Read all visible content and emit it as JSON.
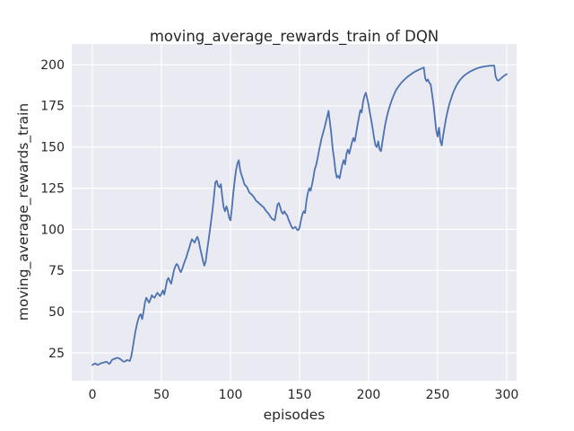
{
  "figure": {
    "background": "#ffffff"
  },
  "chart_data": {
    "type": "line",
    "title": "moving_average_rewards_train of DQN",
    "xlabel": "episodes",
    "ylabel": "moving_average_rewards_train",
    "x_ticks": [
      0,
      50,
      100,
      150,
      200,
      250,
      300
    ],
    "y_ticks": [
      25,
      50,
      75,
      100,
      125,
      150,
      175,
      200
    ],
    "xlim": [
      -15.0,
      307.2
    ],
    "ylim": [
      8.1,
      212.6
    ],
    "grid": true,
    "legend_visible": false,
    "colors": {
      "line": "#4C72B0",
      "plot_background": "#EAEAF2",
      "grid": "#FFFFFF",
      "text": "#262626",
      "figure_background": "#FFFFFF"
    },
    "series": [
      {
        "name": "moving_average_rewards_train",
        "x_start": 0,
        "x_step": 1,
        "y": [
          17.6,
          18.3,
          18.6,
          18.0,
          17.7,
          18.2,
          18.7,
          18.9,
          19.1,
          19.4,
          19.6,
          19.2,
          18.3,
          19.0,
          20.6,
          21.1,
          21.4,
          21.7,
          22.0,
          21.8,
          21.3,
          20.7,
          19.9,
          19.7,
          20.0,
          20.7,
          20.4,
          20.1,
          22.5,
          27.0,
          32.5,
          37.5,
          41.5,
          45.0,
          47.5,
          48.5,
          45.5,
          50.0,
          55.5,
          58.5,
          57.0,
          55.5,
          57.5,
          60.0,
          59.0,
          58.5,
          60.0,
          61.5,
          60.5,
          59.5,
          61.0,
          63.0,
          60.5,
          64.5,
          69.0,
          70.5,
          68.5,
          67.0,
          71.0,
          75.0,
          77.5,
          79.0,
          78.0,
          75.5,
          74.0,
          76.0,
          78.5,
          81.0,
          83.0,
          86.0,
          88.5,
          91.5,
          94.0,
          93.0,
          92.0,
          94.0,
          95.5,
          93.0,
          88.5,
          85.0,
          81.0,
          78.0,
          80.5,
          87.0,
          93.0,
          99.0,
          105.5,
          112.0,
          120.0,
          128.5,
          129.5,
          126.5,
          125.5,
          127.5,
          120.0,
          113.5,
          111.0,
          114.0,
          111.5,
          107.0,
          105.5,
          113.0,
          122.0,
          129.5,
          136.0,
          140.0,
          142.0,
          136.0,
          133.0,
          130.5,
          127.5,
          126.5,
          125.5,
          123.5,
          122.0,
          121.5,
          120.5,
          119.5,
          118.0,
          117.0,
          116.5,
          115.5,
          115.0,
          114.0,
          113.5,
          112.0,
          111.0,
          110.0,
          109.0,
          107.5,
          106.5,
          106.0,
          105.5,
          110.0,
          115.0,
          116.0,
          113.5,
          110.5,
          109.5,
          111.0,
          109.5,
          108.5,
          106.0,
          104.0,
          102.0,
          100.5,
          101.0,
          101.5,
          100.0,
          99.5,
          101.0,
          105.5,
          109.0,
          111.0,
          110.0,
          117.5,
          122.0,
          125.0,
          123.5,
          127.0,
          131.5,
          136.5,
          139.0,
          143.0,
          147.5,
          151.5,
          155.5,
          158.5,
          161.5,
          165.0,
          168.5,
          172.0,
          165.0,
          158.0,
          149.0,
          143.0,
          135.5,
          131.5,
          132.5,
          131.0,
          135.5,
          139.5,
          142.0,
          139.5,
          146.0,
          148.5,
          146.0,
          149.5,
          153.0,
          155.5,
          153.5,
          158.5,
          163.5,
          168.0,
          172.5,
          171.0,
          177.5,
          181.0,
          183.0,
          179.5,
          175.5,
          170.5,
          166.0,
          161.0,
          155.5,
          151.0,
          150.0,
          153.5,
          148.5,
          147.5,
          153.0,
          158.5,
          163.5,
          167.5,
          171.0,
          174.0,
          176.5,
          179.0,
          181.0,
          183.0,
          184.8,
          186.0,
          187.2,
          188.3,
          189.3,
          190.2,
          191.0,
          191.8,
          192.5,
          193.2,
          193.8,
          194.4,
          195.0,
          195.5,
          196.0,
          196.4,
          196.8,
          197.2,
          197.6,
          198.0,
          198.3,
          191.8,
          190.0,
          191.0,
          189.0,
          188.0,
          182.0,
          176.0,
          168.0,
          160.0,
          156.4,
          161.8,
          153.6,
          151.0,
          157.0,
          162.0,
          167.0,
          171.0,
          174.5,
          177.5,
          180.0,
          182.5,
          184.5,
          186.3,
          188.0,
          189.3,
          190.5,
          191.5,
          192.4,
          193.2,
          193.9,
          194.5,
          195.1,
          195.6,
          196.1,
          196.5,
          196.9,
          197.3,
          197.6,
          197.9,
          198.2,
          198.4,
          198.6,
          198.8,
          199.0,
          199.1,
          199.2,
          199.3,
          199.4,
          199.4,
          199.5,
          199.5,
          193.0,
          190.8,
          190.3,
          191.0,
          191.8,
          192.5,
          193.2,
          193.8,
          194.3
        ]
      }
    ]
  }
}
